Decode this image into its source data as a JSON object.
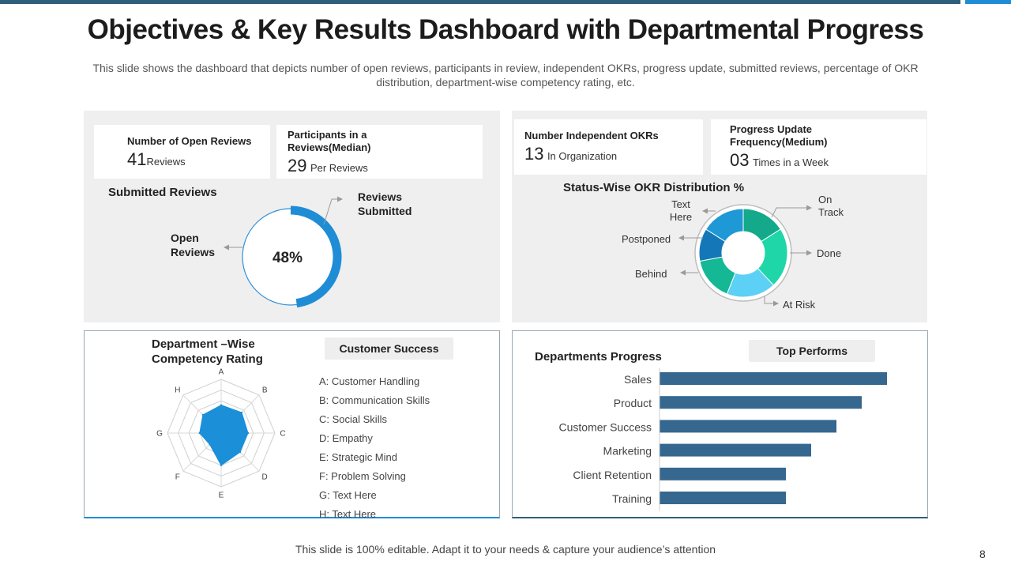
{
  "slide": {
    "title": "Objectives & Key Results Dashboard with Departmental Progress",
    "subtitle": "This slide shows the dashboard that depicts number of open reviews, participants in review, independent OKRs, progress update, submitted reviews, percentage of OKR distribution, department-wise competency rating, etc.",
    "footer": "This slide is 100% editable. Adapt it to your needs & capture your audience’s attention",
    "page_number": "8",
    "colors": {
      "accent": "#1f8dd6",
      "bar": "#35678f",
      "teal": "#13a98a",
      "mint": "#1fd6a8",
      "sky": "#5cd0f5",
      "navy": "#2f5d7c"
    }
  },
  "kpis": {
    "open_reviews": {
      "label": "Number of Open Reviews",
      "value": "41",
      "unit": "Reviews"
    },
    "participants": {
      "label": "Participants in a Reviews(Median)",
      "value": "29",
      "unit": "Per Reviews"
    },
    "independent_okrs": {
      "label": "Number Independent OKRs",
      "value": "13",
      "unit": "In Organization"
    },
    "progress_update": {
      "label": "Progress Update Frequency(Medium)",
      "value": "03",
      "unit": "Times in a Week"
    }
  },
  "submitted": {
    "title": "Submitted Reviews",
    "percent_label": "48%",
    "submitted_label": "Reviews Submitted",
    "open_label": "Open Reviews"
  },
  "okr_dist": {
    "title": "Status-Wise OKR Distribution %",
    "labels": {
      "on_track": "On Track",
      "done": "Done",
      "at_risk": "At Risk",
      "behind": "Behind",
      "postponed": "Postponed",
      "text_here": "Text Here"
    }
  },
  "competency": {
    "title": "Department –Wise Competency Rating",
    "tag": "Customer Success",
    "legend": [
      "A: Customer Handling",
      "B: Communication  Skills",
      "C: Social Skills",
      "D: Empathy",
      "E: Strategic Mind",
      "F: Problem  Solving",
      "G: Text Here",
      "H: Text Here"
    ]
  },
  "progress": {
    "title": "Departments Progress",
    "tag": "Top Performs"
  },
  "chart_data": [
    {
      "type": "pie",
      "title": "Submitted Reviews",
      "categories": [
        "Reviews Submitted",
        "Open Reviews"
      ],
      "values": [
        48,
        52
      ],
      "center_label": "48%"
    },
    {
      "type": "pie",
      "title": "Status-Wise OKR Distribution %",
      "categories": [
        "On Track",
        "Done",
        "At Risk",
        "Behind",
        "Postponed",
        "Text Here"
      ],
      "values": [
        16,
        22,
        18,
        16,
        12,
        16
      ]
    },
    {
      "type": "radar",
      "title": "Department –Wise Competency Rating",
      "categories": [
        "A",
        "B",
        "C",
        "D",
        "E",
        "F",
        "G",
        "H"
      ],
      "values": [
        2.6,
        2.7,
        2.5,
        2.5,
        3.0,
        1.5,
        2.0,
        2.4
      ],
      "max": 5
    },
    {
      "type": "bar",
      "orientation": "horizontal",
      "title": "Departments Progress",
      "categories": [
        "Sales",
        "Product",
        "Customer Success",
        "Marketing",
        "Client Retention",
        "Training"
      ],
      "values": [
        90,
        80,
        70,
        60,
        50,
        50
      ],
      "xlim": [
        0,
        100
      ]
    }
  ]
}
